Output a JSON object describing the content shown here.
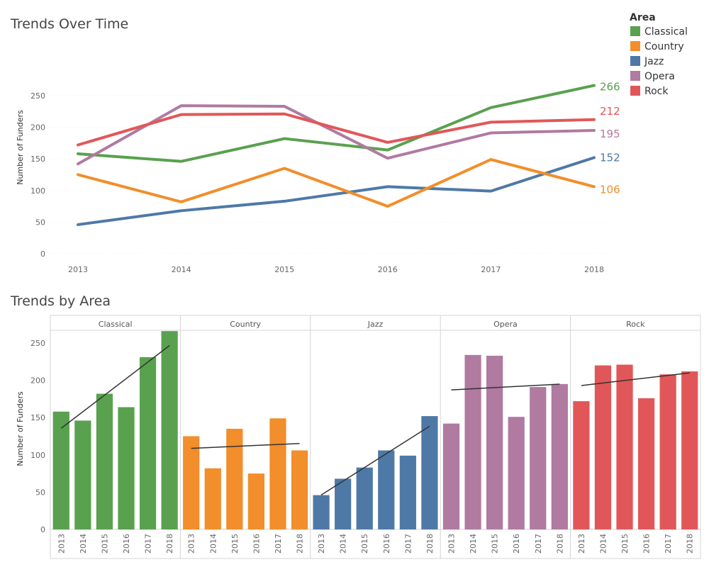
{
  "chart_data": [
    {
      "type": "line",
      "title": "Trends Over Time",
      "xlabel": "",
      "ylabel": "Number of Funders",
      "x": [
        "2013",
        "2014",
        "2015",
        "2016",
        "2017",
        "2018"
      ],
      "ylim": [
        0,
        275
      ],
      "yticks": [
        0,
        50,
        100,
        150,
        200,
        250
      ],
      "grid": false,
      "legend": {
        "title": "Area",
        "placement": "top-right",
        "entries": [
          "Classical",
          "Country",
          "Jazz",
          "Opera",
          "Rock"
        ]
      },
      "series": [
        {
          "name": "Classical",
          "color": "#59a14f",
          "values": [
            158,
            146,
            182,
            164,
            231,
            266
          ],
          "end_label": "266"
        },
        {
          "name": "Country",
          "color": "#f28e2b",
          "values": [
            125,
            82,
            135,
            75,
            149,
            106
          ],
          "end_label": "106"
        },
        {
          "name": "Jazz",
          "color": "#4e79a7",
          "values": [
            46,
            68,
            83,
            106,
            99,
            152
          ],
          "end_label": "152"
        },
        {
          "name": "Opera",
          "color": "#b07aa1",
          "values": [
            142,
            234,
            233,
            151,
            191,
            195
          ],
          "end_label": "195"
        },
        {
          "name": "Rock",
          "color": "#e15759",
          "values": [
            172,
            220,
            221,
            176,
            208,
            212
          ],
          "end_label": "212"
        }
      ]
    },
    {
      "type": "bar",
      "title": "Trends by Area",
      "xlabel": "",
      "ylabel": "Number of Funders",
      "categories": [
        "2013",
        "2014",
        "2015",
        "2016",
        "2017",
        "2018"
      ],
      "ylim": [
        0,
        285
      ],
      "yticks": [
        0,
        50,
        100,
        150,
        200,
        250
      ],
      "trend_lines": true,
      "panels": [
        {
          "name": "Classical",
          "color": "#59a14f",
          "values": [
            158,
            146,
            182,
            164,
            231,
            266
          ]
        },
        {
          "name": "Country",
          "color": "#f28e2b",
          "values": [
            125,
            82,
            135,
            75,
            149,
            106
          ]
        },
        {
          "name": "Jazz",
          "color": "#4e79a7",
          "values": [
            46,
            68,
            83,
            106,
            99,
            152
          ]
        },
        {
          "name": "Opera",
          "color": "#b07aa1",
          "values": [
            142,
            234,
            233,
            151,
            191,
            195
          ]
        },
        {
          "name": "Rock",
          "color": "#e15759",
          "values": [
            172,
            220,
            221,
            176,
            208,
            212
          ]
        }
      ]
    }
  ]
}
